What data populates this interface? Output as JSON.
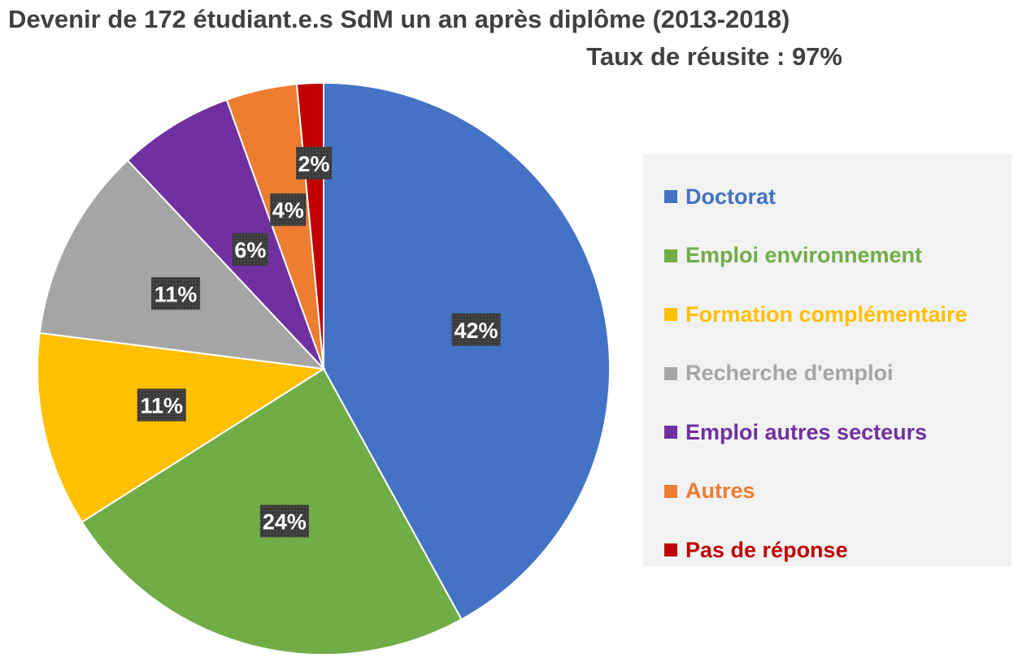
{
  "chart_data": {
    "type": "pie",
    "title": "Devenir de 172 étudiant.e.s SdM un an après diplôme (2013-2018)",
    "subtitle": "Taux de réusite : 97%",
    "series": [
      {
        "name": "Doctorat",
        "value": 42,
        "label": "42%",
        "color": "#4472C4"
      },
      {
        "name": "Emploi environnement",
        "value": 24,
        "label": "24%",
        "color": "#70AD47"
      },
      {
        "name": "Formation complémentaire",
        "value": 11,
        "label": "11%",
        "color": "#FFC000"
      },
      {
        "name": "Recherche d'emploi",
        "value": 11,
        "label": "11%",
        "color": "#A5A5A5"
      },
      {
        "name": "Emploi autres secteurs",
        "value": 6.5,
        "label": "6%",
        "color": "#7030A0"
      },
      {
        "name": "Autres",
        "value": 4,
        "label": "4%",
        "color": "#ED7D31"
      },
      {
        "name": "Pas de réponse",
        "value": 1.5,
        "label": "2%",
        "color": "#C00000"
      }
    ],
    "legend_position": "right"
  }
}
